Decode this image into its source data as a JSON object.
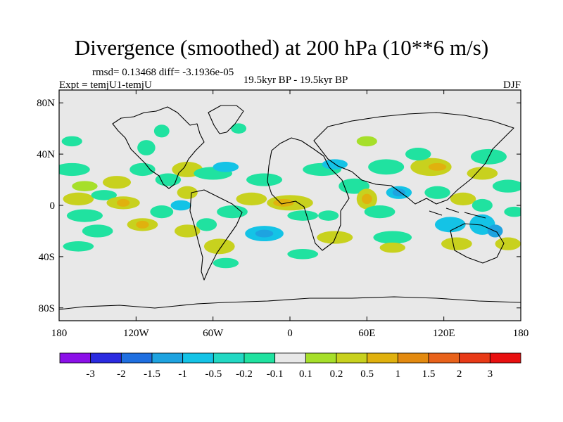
{
  "title": "Divergence (smoothed) at 200 hPa (10**6 m/s)",
  "stats": "rmsd= 0.13468 diff= -3.1936e-05",
  "expt": "Expt = temjU1-temjU",
  "period": "19.5kyr BP - 19.5kyr BP",
  "season": "DJF",
  "axes": {
    "lat_ticks": [
      {
        "label": "80N",
        "lat": 80
      },
      {
        "label": "40N",
        "lat": 40
      },
      {
        "label": "0",
        "lat": 0
      },
      {
        "label": "40S",
        "lat": -40
      },
      {
        "label": "80S",
        "lat": -80
      }
    ],
    "lon_ticks": [
      {
        "label": "180",
        "lon": -180
      },
      {
        "label": "120W",
        "lon": -120
      },
      {
        "label": "60W",
        "lon": -60
      },
      {
        "label": "0",
        "lon": 0
      },
      {
        "label": "60E",
        "lon": 60
      },
      {
        "label": "120E",
        "lon": 120
      },
      {
        "label": "180",
        "lon": 180
      }
    ],
    "lat_range": [
      -90,
      90
    ],
    "lon_range": [
      -180,
      180
    ]
  },
  "colorbar": {
    "labels": [
      "-3",
      "-2",
      "-1.5",
      "-1",
      "-0.5",
      "-0.2",
      "-0.1",
      "0.1",
      "0.2",
      "0.5",
      "1",
      "1.5",
      "2",
      "3"
    ],
    "colors": [
      "#8b10e8",
      "#2b2be0",
      "#1f6fe0",
      "#1ea3e0",
      "#14c3e6",
      "#22d8c3",
      "#20e2a0",
      "#e8e8e8",
      "#a6df2a",
      "#c8d11e",
      "#e0b10e",
      "#e38a10",
      "#e8621b",
      "#e83a17",
      "#e81010"
    ]
  },
  "colors": {
    "background_field": "#e8e8e8",
    "coast": "#000000",
    "neg_strong": "#1ea3e0",
    "neg": "#14c3e6",
    "neg_weak": "#20e2a0",
    "pos_weak": "#a6df2a",
    "pos": "#c8d11e",
    "pos_strong": "#e0b10e"
  },
  "field_blobs": [
    {
      "lon": -170,
      "lat": 28,
      "rx": 14,
      "ry": 5,
      "level": "neg_weak"
    },
    {
      "lon": -160,
      "lat": 15,
      "rx": 10,
      "ry": 4,
      "level": "pos_weak"
    },
    {
      "lon": -165,
      "lat": 5,
      "rx": 12,
      "ry": 5,
      "level": "pos"
    },
    {
      "lon": -160,
      "lat": -8,
      "rx": 14,
      "ry": 5,
      "level": "neg_weak"
    },
    {
      "lon": -145,
      "lat": 8,
      "rx": 10,
      "ry": 4,
      "level": "neg_weak"
    },
    {
      "lon": -135,
      "lat": 18,
      "rx": 11,
      "ry": 5,
      "level": "pos"
    },
    {
      "lon": -130,
      "lat": 2,
      "rx": 13,
      "ry": 5,
      "level": "pos"
    },
    {
      "lon": -130,
      "lat": 2,
      "rx": 5,
      "ry": 3,
      "level": "pos_strong"
    },
    {
      "lon": -150,
      "lat": -20,
      "rx": 12,
      "ry": 5,
      "level": "neg_weak"
    },
    {
      "lon": -165,
      "lat": -32,
      "rx": 12,
      "ry": 4,
      "level": "neg_weak"
    },
    {
      "lon": -115,
      "lat": -15,
      "rx": 12,
      "ry": 5,
      "level": "pos"
    },
    {
      "lon": -115,
      "lat": -15,
      "rx": 5,
      "ry": 3,
      "level": "pos_strong"
    },
    {
      "lon": -100,
      "lat": -5,
      "rx": 9,
      "ry": 5,
      "level": "neg_weak"
    },
    {
      "lon": -115,
      "lat": 28,
      "rx": 10,
      "ry": 5,
      "level": "neg_weak"
    },
    {
      "lon": -112,
      "lat": 45,
      "rx": 7,
      "ry": 6,
      "level": "neg_weak"
    },
    {
      "lon": -100,
      "lat": 58,
      "rx": 6,
      "ry": 5,
      "level": "neg_weak"
    },
    {
      "lon": -95,
      "lat": 20,
      "rx": 10,
      "ry": 5,
      "level": "neg_weak"
    },
    {
      "lon": -80,
      "lat": 10,
      "rx": 8,
      "ry": 5,
      "level": "pos"
    },
    {
      "lon": -80,
      "lat": 28,
      "rx": 12,
      "ry": 6,
      "level": "pos"
    },
    {
      "lon": -85,
      "lat": 0,
      "rx": 8,
      "ry": 4,
      "level": "neg"
    },
    {
      "lon": -60,
      "lat": 25,
      "rx": 15,
      "ry": 5,
      "level": "neg_weak"
    },
    {
      "lon": -50,
      "lat": 30,
      "rx": 10,
      "ry": 4,
      "level": "neg"
    },
    {
      "lon": -45,
      "lat": -5,
      "rx": 12,
      "ry": 5,
      "level": "neg_weak"
    },
    {
      "lon": -65,
      "lat": -15,
      "rx": 8,
      "ry": 5,
      "level": "neg_weak"
    },
    {
      "lon": -80,
      "lat": -20,
      "rx": 10,
      "ry": 5,
      "level": "pos"
    },
    {
      "lon": -55,
      "lat": -32,
      "rx": 12,
      "ry": 6,
      "level": "pos"
    },
    {
      "lon": -50,
      "lat": -45,
      "rx": 10,
      "ry": 4,
      "level": "neg_weak"
    },
    {
      "lon": -20,
      "lat": -22,
      "rx": 15,
      "ry": 6,
      "level": "neg"
    },
    {
      "lon": -20,
      "lat": -22,
      "rx": 7,
      "ry": 3,
      "level": "neg_strong"
    },
    {
      "lon": -30,
      "lat": 5,
      "rx": 12,
      "ry": 5,
      "level": "pos"
    },
    {
      "lon": -20,
      "lat": 20,
      "rx": 14,
      "ry": 5,
      "level": "neg_weak"
    },
    {
      "lon": 0,
      "lat": 2,
      "rx": 18,
      "ry": 6,
      "level": "pos"
    },
    {
      "lon": -5,
      "lat": 2,
      "rx": 8,
      "ry": 3,
      "level": "pos_strong"
    },
    {
      "lon": 10,
      "lat": -8,
      "rx": 12,
      "ry": 4,
      "level": "neg_weak"
    },
    {
      "lon": 25,
      "lat": 28,
      "rx": 15,
      "ry": 5,
      "level": "neg_weak"
    },
    {
      "lon": 35,
      "lat": 32,
      "rx": 10,
      "ry": 4,
      "level": "neg"
    },
    {
      "lon": 30,
      "lat": -8,
      "rx": 8,
      "ry": 4,
      "level": "neg_weak"
    },
    {
      "lon": 35,
      "lat": -25,
      "rx": 14,
      "ry": 5,
      "level": "pos"
    },
    {
      "lon": 10,
      "lat": -38,
      "rx": 12,
      "ry": 4,
      "level": "neg_weak"
    },
    {
      "lon": 50,
      "lat": 15,
      "rx": 12,
      "ry": 6,
      "level": "neg_weak"
    },
    {
      "lon": 60,
      "lat": 5,
      "rx": 8,
      "ry": 8,
      "level": "pos"
    },
    {
      "lon": 60,
      "lat": 5,
      "rx": 4,
      "ry": 4,
      "level": "pos_strong"
    },
    {
      "lon": 75,
      "lat": 30,
      "rx": 14,
      "ry": 6,
      "level": "neg_weak"
    },
    {
      "lon": 85,
      "lat": 10,
      "rx": 10,
      "ry": 5,
      "level": "neg"
    },
    {
      "lon": 85,
      "lat": 10,
      "rx": 5,
      "ry": 3,
      "level": "neg_strong"
    },
    {
      "lon": 70,
      "lat": -5,
      "rx": 12,
      "ry": 5,
      "level": "neg_weak"
    },
    {
      "lon": 80,
      "lat": -25,
      "rx": 15,
      "ry": 5,
      "level": "neg_weak"
    },
    {
      "lon": 80,
      "lat": -33,
      "rx": 10,
      "ry": 4,
      "level": "pos"
    },
    {
      "lon": 110,
      "lat": 30,
      "rx": 16,
      "ry": 7,
      "level": "pos"
    },
    {
      "lon": 115,
      "lat": 30,
      "rx": 7,
      "ry": 3,
      "level": "pos_strong"
    },
    {
      "lon": 100,
      "lat": 40,
      "rx": 10,
      "ry": 5,
      "level": "neg_weak"
    },
    {
      "lon": 115,
      "lat": 10,
      "rx": 10,
      "ry": 5,
      "level": "neg_weak"
    },
    {
      "lon": 135,
      "lat": 5,
      "rx": 10,
      "ry": 5,
      "level": "pos"
    },
    {
      "lon": 150,
      "lat": 25,
      "rx": 12,
      "ry": 5,
      "level": "pos"
    },
    {
      "lon": 155,
      "lat": 38,
      "rx": 14,
      "ry": 6,
      "level": "neg_weak"
    },
    {
      "lon": 170,
      "lat": 15,
      "rx": 12,
      "ry": 5,
      "level": "neg_weak"
    },
    {
      "lon": 150,
      "lat": 0,
      "rx": 8,
      "ry": 5,
      "level": "neg_weak"
    },
    {
      "lon": 125,
      "lat": -15,
      "rx": 12,
      "ry": 6,
      "level": "neg"
    },
    {
      "lon": 150,
      "lat": -15,
      "rx": 10,
      "ry": 8,
      "level": "neg"
    },
    {
      "lon": 160,
      "lat": -20,
      "rx": 6,
      "ry": 5,
      "level": "neg_strong"
    },
    {
      "lon": 130,
      "lat": -30,
      "rx": 12,
      "ry": 5,
      "level": "pos"
    },
    {
      "lon": 170,
      "lat": -30,
      "rx": 10,
      "ry": 5,
      "level": "pos"
    },
    {
      "lon": 175,
      "lat": -5,
      "rx": 8,
      "ry": 4,
      "level": "neg_weak"
    },
    {
      "lon": -170,
      "lat": 50,
      "rx": 8,
      "ry": 4,
      "level": "neg_weak"
    },
    {
      "lon": -40,
      "lat": 60,
      "rx": 6,
      "ry": 4,
      "level": "neg_weak"
    },
    {
      "lon": 60,
      "lat": 50,
      "rx": 8,
      "ry": 4,
      "level": "pos_weak"
    }
  ]
}
